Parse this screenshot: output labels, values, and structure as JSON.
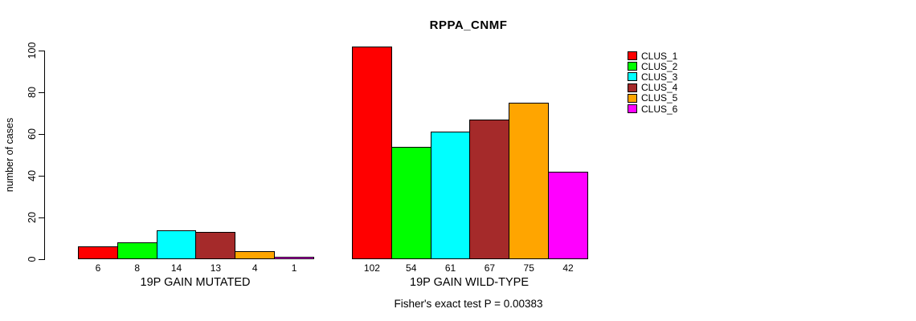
{
  "chart_data": {
    "type": "bar",
    "title": "RPPA_CNMF",
    "xlabel": "",
    "ylabel": "number of cases",
    "ylim": [
      0,
      102
    ],
    "yticks": [
      0,
      20,
      40,
      60,
      80,
      100
    ],
    "grid": false,
    "legend_position": "right",
    "bar_outline_color": "#000000",
    "series": [
      {
        "name": "CLUS_1",
        "color": "#FF0000"
      },
      {
        "name": "CLUS_2",
        "color": "#00FF00"
      },
      {
        "name": "CLUS_3",
        "color": "#00FFFF"
      },
      {
        "name": "CLUS_4",
        "color": "#A52A2A"
      },
      {
        "name": "CLUS_5",
        "color": "#FFA500"
      },
      {
        "name": "CLUS_6",
        "color": "#FF00FF"
      }
    ],
    "groups": [
      {
        "label": "19P GAIN MUTATED",
        "values": [
          6,
          8,
          14,
          13,
          4,
          1
        ]
      },
      {
        "label": "19P GAIN WILD-TYPE",
        "values": [
          102,
          54,
          61,
          67,
          75,
          42
        ]
      }
    ],
    "annotation": "Fisher's exact test P = 0.00383"
  }
}
